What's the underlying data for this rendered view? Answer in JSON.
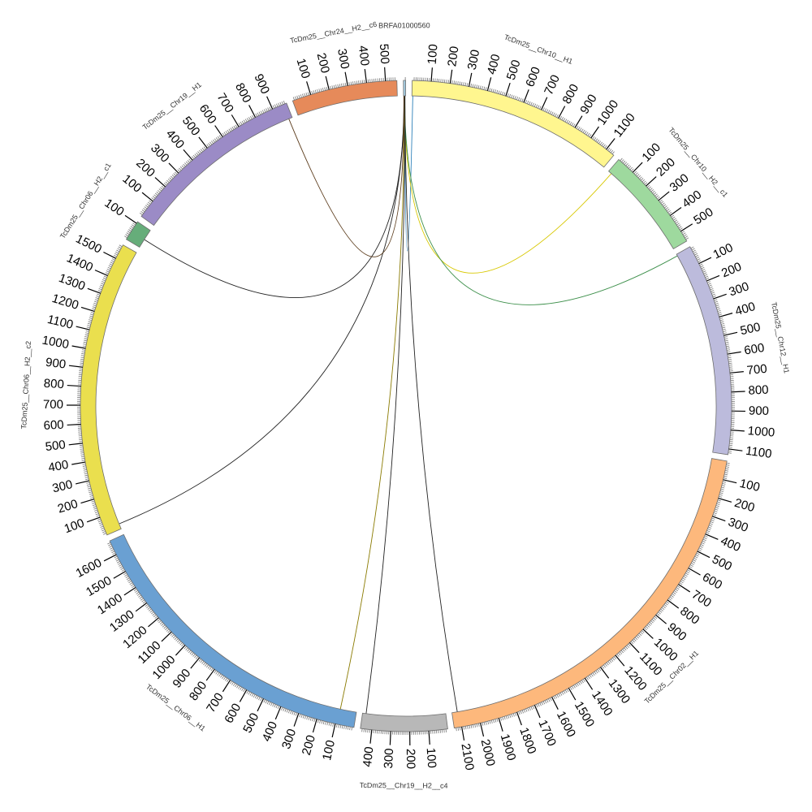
{
  "chart_data": {
    "type": "circos",
    "title": "",
    "segments": [
      {
        "id": "contig",
        "name": "BRFA01000560",
        "length": 12,
        "color": "#a6cee3",
        "ticks": []
      },
      {
        "id": "chr10_h1",
        "name": "TcDm25__Chr10__H1",
        "length": 1150,
        "color": "#fff68f",
        "ticks": [
          100,
          200,
          300,
          400,
          500,
          600,
          700,
          800,
          900,
          1000,
          1100
        ]
      },
      {
        "id": "chr10_h2_c1",
        "name": "TcDm25__Chr10__H2__c1",
        "length": 560,
        "color": "#9ed99e",
        "ticks": [
          100,
          200,
          300,
          400,
          500
        ]
      },
      {
        "id": "chr12_h1",
        "name": "TcDm25__Chr12__H1",
        "length": 1130,
        "color": "#bcbbdc",
        "ticks": [
          100,
          200,
          300,
          400,
          500,
          600,
          700,
          800,
          900,
          1000,
          1100
        ]
      },
      {
        "id": "chr02_h1",
        "name": "TcDm25__Chr02__H1",
        "length": 2140,
        "color": "#fdb87c",
        "ticks": [
          100,
          200,
          300,
          400,
          500,
          600,
          700,
          800,
          900,
          1000,
          1100,
          1200,
          1300,
          1400,
          1500,
          1600,
          1700,
          1800,
          1900,
          2000,
          2100
        ]
      },
      {
        "id": "chr19_h2_c4",
        "name": "TcDm25__Chr19__H2__c4",
        "length": 460,
        "color": "#b8b8b8",
        "ticks": [
          100,
          200,
          300,
          400
        ]
      },
      {
        "id": "chr06_h1",
        "name": "TcDm25__Chr06__H1",
        "length": 1680,
        "color": "#6aa0d2",
        "ticks": [
          100,
          200,
          300,
          400,
          500,
          600,
          700,
          800,
          900,
          1000,
          1100,
          1200,
          1300,
          1400,
          1500,
          1600
        ]
      },
      {
        "id": "chr06_h2_c2",
        "name": "TcDm25__Chr06__H2__c2",
        "length": 1580,
        "color": "#eadf4e",
        "ticks": [
          100,
          200,
          300,
          400,
          500,
          600,
          700,
          800,
          900,
          1000,
          1100,
          1200,
          1300,
          1400,
          1500
        ]
      },
      {
        "id": "chr06_h2_c1",
        "name": "TcDm25__Chr06__H2__c1",
        "length": 110,
        "color": "#66ad7a",
        "ticks": [
          100
        ]
      },
      {
        "id": "chr19_h1",
        "name": "TcDm25__Chr19__H1",
        "length": 980,
        "color": "#9b8bc6",
        "ticks": [
          100,
          200,
          300,
          400,
          500,
          600,
          700,
          800,
          900
        ]
      },
      {
        "id": "chr24_h2_c6",
        "name": "TcDm25__Chr24__H2__c6",
        "length": 560,
        "color": "#e68a5a",
        "ticks": [
          100,
          200,
          300,
          400,
          500
        ]
      }
    ],
    "links": [
      {
        "from": "contig",
        "from_pos": 6,
        "to": "chr10_h1",
        "to_pos": 5,
        "color": "#2a7fb8"
      },
      {
        "from": "contig",
        "from_pos": 4,
        "to": "chr10_h2_c1",
        "to_pos": 20,
        "color": "#d8c800"
      },
      {
        "from": "contig",
        "from_pos": 5,
        "to": "chr12_h1",
        "to_pos": 10,
        "color": "#3c8f4a"
      },
      {
        "from": "contig",
        "from_pos": 7,
        "to": "chr02_h1",
        "to_pos": 2110,
        "color": "#222222"
      },
      {
        "from": "contig",
        "from_pos": 8,
        "to": "chr19_h2_c4",
        "to_pos": 440,
        "color": "#222222"
      },
      {
        "from": "contig",
        "from_pos": 3,
        "to": "chr06_h1",
        "to_pos": 90,
        "color": "#8a7a00"
      },
      {
        "from": "contig",
        "from_pos": 3,
        "to": "chr06_h2_c2",
        "to_pos": 30,
        "color": "#222222"
      },
      {
        "from": "contig",
        "from_pos": 2,
        "to": "chr06_h2_c1",
        "to_pos": 50,
        "color": "#222222"
      },
      {
        "from": "contig",
        "from_pos": 2,
        "to": "chr19_h1",
        "to_pos": 960,
        "color": "#5a3a1a"
      }
    ]
  }
}
